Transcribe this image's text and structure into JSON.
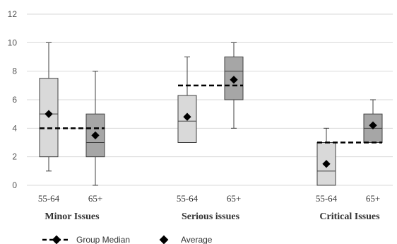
{
  "chart_data": {
    "type": "boxplot",
    "ylim": [
      0,
      12
    ],
    "y_ticks": [
      "0",
      "2",
      "4",
      "6",
      "8",
      "10",
      "12"
    ],
    "grid": true,
    "legend_position": "bottom-left",
    "legend": {
      "group_median": "Group Median",
      "average": "Average"
    },
    "groups": [
      {
        "label": "Minor Issues",
        "group_median": 4,
        "boxes": [
          {
            "category": "55-64",
            "min": 1,
            "q1": 2,
            "median": 5,
            "q3": 7.5,
            "max": 10,
            "average": 5,
            "fill": "#d9d9d9"
          },
          {
            "category": "65+",
            "min": 0,
            "q1": 2,
            "median": 3,
            "q3": 5,
            "max": 8,
            "average": 3.5,
            "fill": "#a6a6a6"
          }
        ]
      },
      {
        "label": "Serious issues",
        "group_median": 7,
        "boxes": [
          {
            "category": "55-64",
            "min": 3,
            "q1": 3,
            "median": 4.5,
            "q3": 6.3,
            "max": 9,
            "average": 4.8,
            "fill": "#d9d9d9"
          },
          {
            "category": "65+",
            "min": 4,
            "q1": 6,
            "median": 8,
            "q3": 9,
            "max": 10,
            "average": 7.4,
            "fill": "#a6a6a6"
          }
        ]
      },
      {
        "label": "Critical Issues",
        "group_median": 3,
        "boxes": [
          {
            "category": "55-64",
            "min": 0,
            "q1": 0,
            "median": 1,
            "q3": 3,
            "max": 4,
            "average": 1.5,
            "fill": "#d9d9d9"
          },
          {
            "category": "65+",
            "min": 3,
            "q1": 3,
            "median": 4,
            "q3": 5,
            "max": 6,
            "average": 4.2,
            "fill": "#a6a6a6"
          }
        ]
      }
    ]
  }
}
